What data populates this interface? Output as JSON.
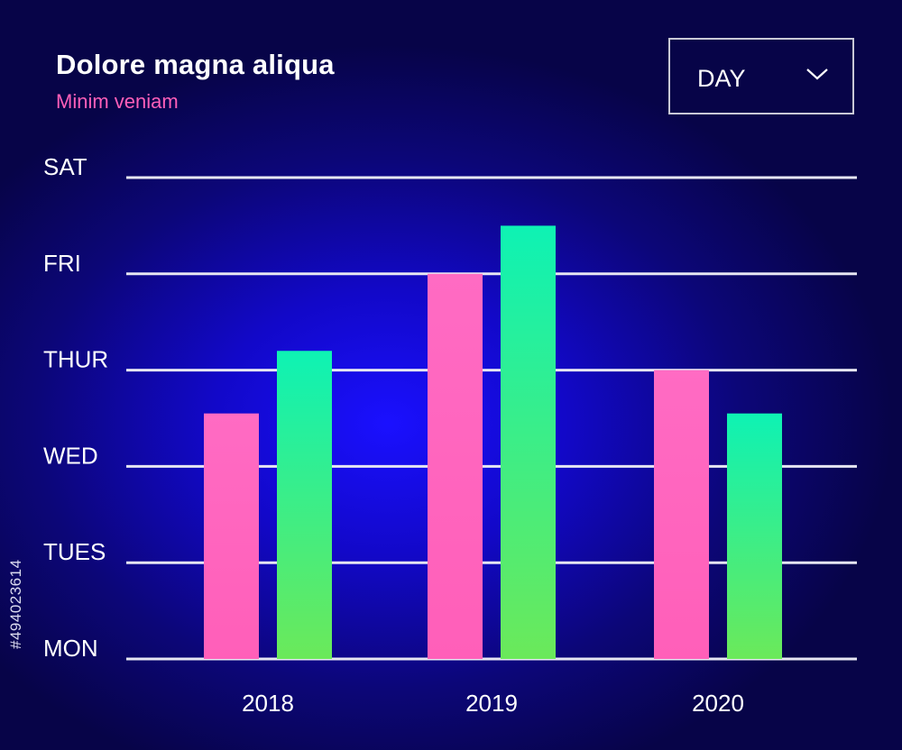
{
  "header": {
    "title": "Dolore magna aliqua",
    "subtitle": "Minim veniam"
  },
  "dropdown": {
    "value": "DAY",
    "icon": "chevron-down-icon"
  },
  "side_text": "#494023614",
  "colors": {
    "background": "#0c0678",
    "series_pink": "#ff5fb9",
    "series_green_top": "#0ef2b4",
    "series_green_bottom": "#6be95a",
    "gridline": "#e6e6f2"
  },
  "chart_data": {
    "type": "bar",
    "categories": [
      "2018",
      "2019",
      "2020"
    ],
    "y_ticks": [
      "MON",
      "TUES",
      "WED",
      "THUR",
      "FRI",
      "SAT"
    ],
    "ylim": [
      0,
      5
    ],
    "grid": true,
    "series": [
      {
        "values": [
          2.55,
          4.0,
          3.0
        ]
      },
      {
        "values": [
          3.2,
          4.5,
          2.55
        ]
      }
    ]
  }
}
